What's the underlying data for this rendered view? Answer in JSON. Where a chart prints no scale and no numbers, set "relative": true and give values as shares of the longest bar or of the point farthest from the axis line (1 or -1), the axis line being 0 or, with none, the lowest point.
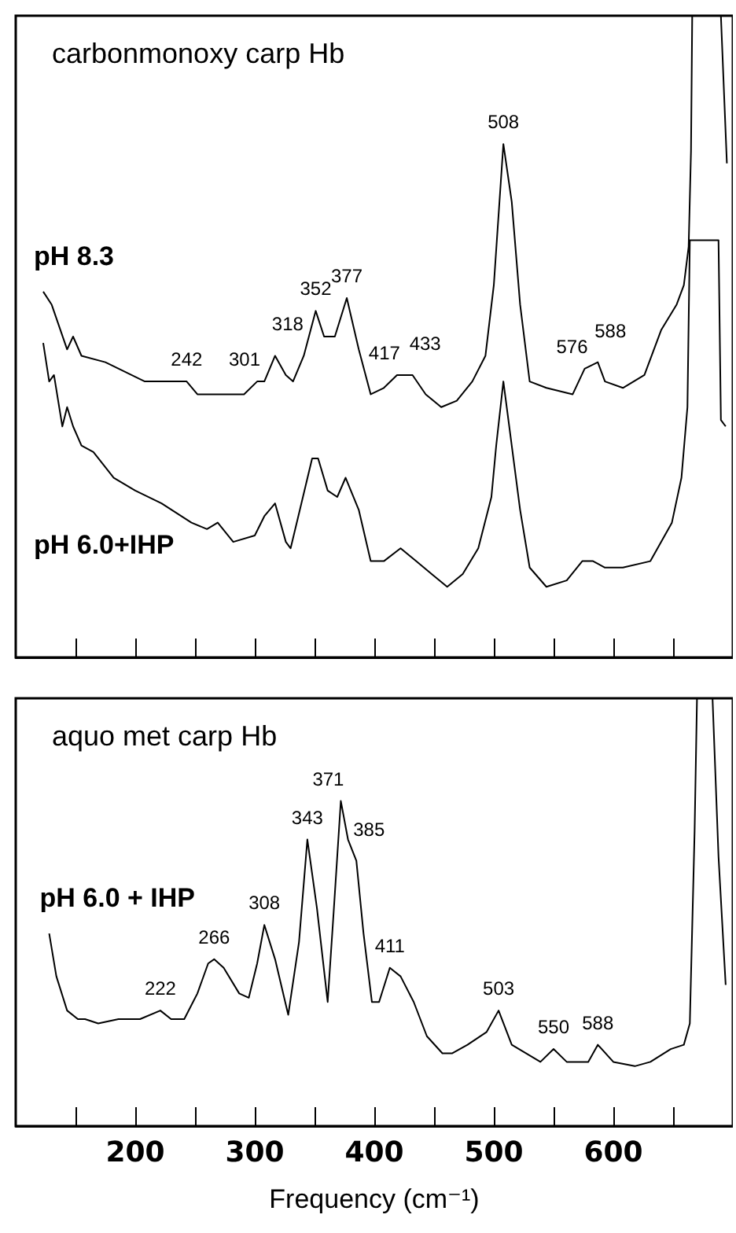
{
  "chart_data": [
    {
      "type": "line",
      "title": "carbonmonoxy carp Hb",
      "relative": true,
      "xlim": [
        100,
        700
      ],
      "xticks": [
        {
          "value": 150,
          "label": null
        },
        {
          "value": 200,
          "label": null
        },
        {
          "value": 250,
          "label": null
        },
        {
          "value": 300,
          "label": null
        },
        {
          "value": 350,
          "label": null
        },
        {
          "value": 400,
          "label": null
        },
        {
          "value": 450,
          "label": null
        },
        {
          "value": 500,
          "label": null
        },
        {
          "value": 550,
          "label": null
        },
        {
          "value": 600,
          "label": null
        },
        {
          "value": 650,
          "label": null
        }
      ],
      "tick_labels": false,
      "grid": false,
      "legend": false,
      "marker": "none",
      "line_style": "solid",
      "series": [
        {
          "name": "pH 8.3",
          "color": "#000000",
          "x": [
            123,
            130,
            143,
            148,
            155,
            175,
            208,
            226,
            243,
            252,
            269,
            291,
            302,
            308,
            317,
            326,
            332,
            341,
            351,
            358,
            367,
            377,
            387,
            397,
            408,
            419,
            425,
            432,
            443,
            456,
            469,
            482,
            493,
            500,
            508,
            515,
            522,
            530,
            544,
            566,
            576,
            587,
            593,
            608,
            626,
            640,
            653,
            659,
            663,
            665,
            666,
            690,
            695
          ],
          "values": [
            0.57,
            0.55,
            0.48,
            0.5,
            0.47,
            0.46,
            0.43,
            0.43,
            0.43,
            0.41,
            0.41,
            0.41,
            0.43,
            0.43,
            0.47,
            0.44,
            0.43,
            0.47,
            0.54,
            0.5,
            0.5,
            0.56,
            0.48,
            0.41,
            0.42,
            0.44,
            0.44,
            0.44,
            0.41,
            0.39,
            0.4,
            0.43,
            0.47,
            0.58,
            0.8,
            0.71,
            0.55,
            0.43,
            0.42,
            0.41,
            0.45,
            0.46,
            0.43,
            0.42,
            0.44,
            0.51,
            0.55,
            0.58,
            0.64,
            0.79,
            1.0,
            1.0,
            0.77
          ]
        },
        {
          "name": "pH 6.0+IHP",
          "color": "#000000",
          "x": [
            123,
            128,
            132,
            139,
            143,
            148,
            155,
            165,
            182,
            200,
            222,
            247,
            260,
            269,
            282,
            300,
            308,
            317,
            326,
            330,
            339,
            348,
            353,
            361,
            369,
            376,
            387,
            397,
            408,
            422,
            435,
            448,
            461,
            474,
            487,
            498,
            502,
            508,
            515,
            522,
            530,
            544,
            561,
            574,
            583,
            593,
            608,
            631,
            649,
            657,
            662,
            664,
            688,
            690,
            694
          ],
          "values": [
            0.49,
            0.43,
            0.44,
            0.36,
            0.39,
            0.36,
            0.33,
            0.32,
            0.28,
            0.26,
            0.24,
            0.21,
            0.2,
            0.21,
            0.18,
            0.19,
            0.22,
            0.24,
            0.18,
            0.17,
            0.24,
            0.31,
            0.31,
            0.26,
            0.25,
            0.28,
            0.23,
            0.15,
            0.15,
            0.17,
            0.15,
            0.13,
            0.11,
            0.13,
            0.17,
            0.25,
            0.33,
            0.43,
            0.33,
            0.23,
            0.14,
            0.11,
            0.12,
            0.15,
            0.15,
            0.14,
            0.14,
            0.15,
            0.21,
            0.28,
            0.39,
            0.65,
            0.65,
            0.37,
            0.36
          ]
        }
      ],
      "annotations": [
        {
          "text": "242",
          "x": 243,
          "y": 0.43
        },
        {
          "text": "301",
          "x": 302,
          "y": 0.43
        },
        {
          "text": "318",
          "x": 317,
          "y": 0.47
        },
        {
          "text": "352",
          "x": 351,
          "y": 0.54
        },
        {
          "text": "377",
          "x": 377,
          "y": 0.56
        },
        {
          "text": "417",
          "x": 419,
          "y": 0.44
        },
        {
          "text": "433",
          "x": 432,
          "y": 0.44
        },
        {
          "text": "508",
          "x": 508,
          "y": 0.8
        },
        {
          "text": "576",
          "x": 576,
          "y": 0.45
        },
        {
          "text": "588",
          "x": 587,
          "y": 0.46
        }
      ]
    },
    {
      "type": "line",
      "title": "aquo met carp Hb",
      "xlabel": "Frequency (cm⁻¹)",
      "relative": true,
      "xlim": [
        100,
        700
      ],
      "xticks": [
        {
          "value": 150,
          "label": null
        },
        200,
        {
          "value": 250,
          "label": null
        },
        300,
        {
          "value": 350,
          "label": null
        },
        400,
        {
          "value": 450,
          "label": null
        },
        500,
        {
          "value": 550,
          "label": null
        },
        600,
        {
          "value": 650,
          "label": null
        }
      ],
      "tick_labels": "x",
      "grid": false,
      "legend": false,
      "marker": "none",
      "line_style": "solid",
      "series": [
        {
          "name": "pH 6.0 + IHP",
          "color": "#000000",
          "x": [
            128,
            134,
            143,
            152,
            158,
            169,
            186,
            204,
            221,
            230,
            241,
            252,
            261,
            266,
            274,
            287,
            295,
            302,
            308,
            317,
            328,
            337,
            344,
            352,
            361,
            366,
            372,
            378,
            385,
            391,
            398,
            404,
            413,
            422,
            433,
            444,
            457,
            465,
            478,
            494,
            504,
            515,
            539,
            550,
            561,
            579,
            587,
            600,
            618,
            631,
            648,
            659,
            664,
            668,
            670,
            683,
            688,
            694
          ],
          "values": [
            0.45,
            0.35,
            0.27,
            0.25,
            0.25,
            0.24,
            0.25,
            0.25,
            0.27,
            0.25,
            0.25,
            0.31,
            0.38,
            0.39,
            0.37,
            0.31,
            0.3,
            0.38,
            0.47,
            0.39,
            0.26,
            0.43,
            0.67,
            0.51,
            0.29,
            0.5,
            0.76,
            0.67,
            0.62,
            0.45,
            0.29,
            0.29,
            0.37,
            0.35,
            0.29,
            0.21,
            0.17,
            0.17,
            0.19,
            0.22,
            0.27,
            0.19,
            0.15,
            0.18,
            0.15,
            0.15,
            0.19,
            0.15,
            0.14,
            0.15,
            0.18,
            0.19,
            0.24,
            0.69,
            1.0,
            1.0,
            0.63,
            0.33
          ]
        }
      ],
      "annotations": [
        {
          "text": "222",
          "x": 221,
          "y": 0.27
        },
        {
          "text": "266",
          "x": 266,
          "y": 0.39
        },
        {
          "text": "308",
          "x": 308,
          "y": 0.47
        },
        {
          "text": "343",
          "x": 344,
          "y": 0.67
        },
        {
          "text": "371",
          "x": 372,
          "y": 0.76
        },
        {
          "text": "385",
          "x": 385,
          "y": 0.62
        },
        {
          "text": "411",
          "x": 413,
          "y": 0.37
        },
        {
          "text": "503",
          "x": 504,
          "y": 0.27
        },
        {
          "text": "550",
          "x": 550,
          "y": 0.18
        },
        {
          "text": "588",
          "x": 587,
          "y": 0.19
        }
      ]
    }
  ]
}
